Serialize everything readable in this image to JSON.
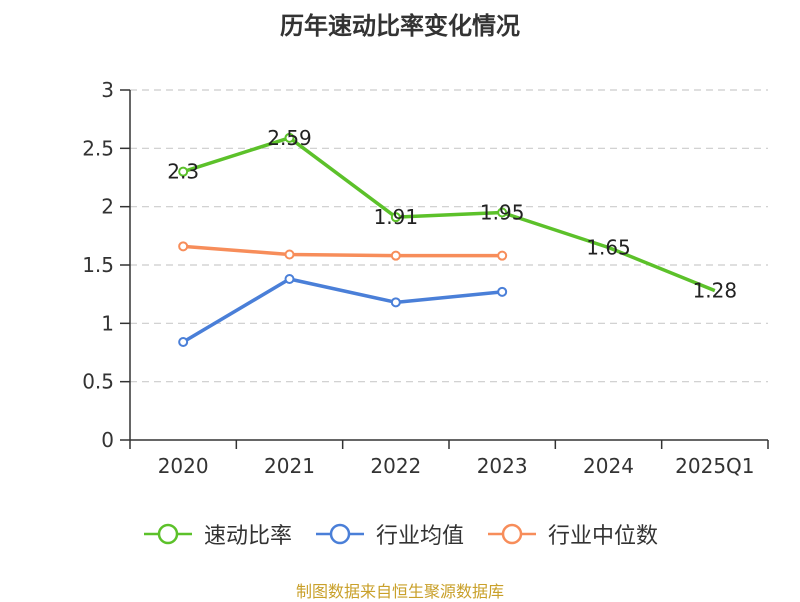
{
  "title": "历年速动比率变化情况",
  "footer": "制图数据来自恒生聚源数据库",
  "chart_data": {
    "type": "line",
    "categories": [
      "2020",
      "2021",
      "2022",
      "2023",
      "2024",
      "2025Q1"
    ],
    "ylim": [
      0,
      3
    ],
    "yticks": [
      "0",
      "0.5",
      "1",
      "1.5",
      "2",
      "2.5",
      "3"
    ],
    "grid": true,
    "legend_position": "bottom",
    "series": [
      {
        "name": "速动比率",
        "color": "#5cc12a",
        "values": [
          2.3,
          2.59,
          1.91,
          1.95,
          1.65,
          1.28
        ],
        "labels": [
          "2.3",
          "2.59",
          "1.91",
          "1.95",
          "1.65",
          "1.28"
        ]
      },
      {
        "name": "行业均值",
        "color": "#4a7fd8",
        "values": [
          0.84,
          1.38,
          1.18,
          1.27,
          null,
          null
        ]
      },
      {
        "name": "行业中位数",
        "color": "#f78d5a",
        "values": [
          1.66,
          1.59,
          1.58,
          1.58,
          null,
          null
        ]
      }
    ]
  }
}
